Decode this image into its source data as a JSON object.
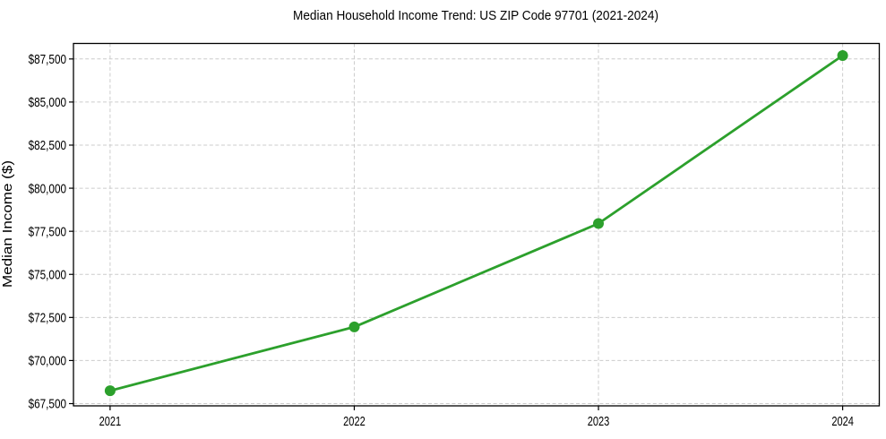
{
  "chart_data": {
    "type": "line",
    "title": "Median Household Income Trend: US ZIP Code 97701 (2021-2024)",
    "xlabel": "",
    "ylabel": "Median Income ($)",
    "x": [
      2021,
      2022,
      2023,
      2024
    ],
    "values": [
      68250,
      71950,
      77950,
      87700
    ],
    "x_tick_labels": [
      "2021",
      "2022",
      "2023",
      "2024"
    ],
    "y_ticks": [
      67500,
      70000,
      72500,
      75000,
      77500,
      80000,
      82500,
      85000,
      87500
    ],
    "y_tick_labels": [
      "$67,500",
      "$70,000",
      "$72,500",
      "$75,000",
      "$77,500",
      "$80,000",
      "$82,500",
      "$85,000",
      "$87,500"
    ],
    "xlim": [
      2020.85,
      2024.15
    ],
    "ylim": [
      67370,
      88400
    ],
    "grid": true,
    "grid_style": "dashed",
    "legend": false,
    "marker": "circle"
  },
  "colors": {
    "accent_line": "#2ca02c",
    "marker": "#2ca02c",
    "grid": "#cccccc",
    "axis": "#000000",
    "text": "#000000",
    "background": "#ffffff"
  }
}
